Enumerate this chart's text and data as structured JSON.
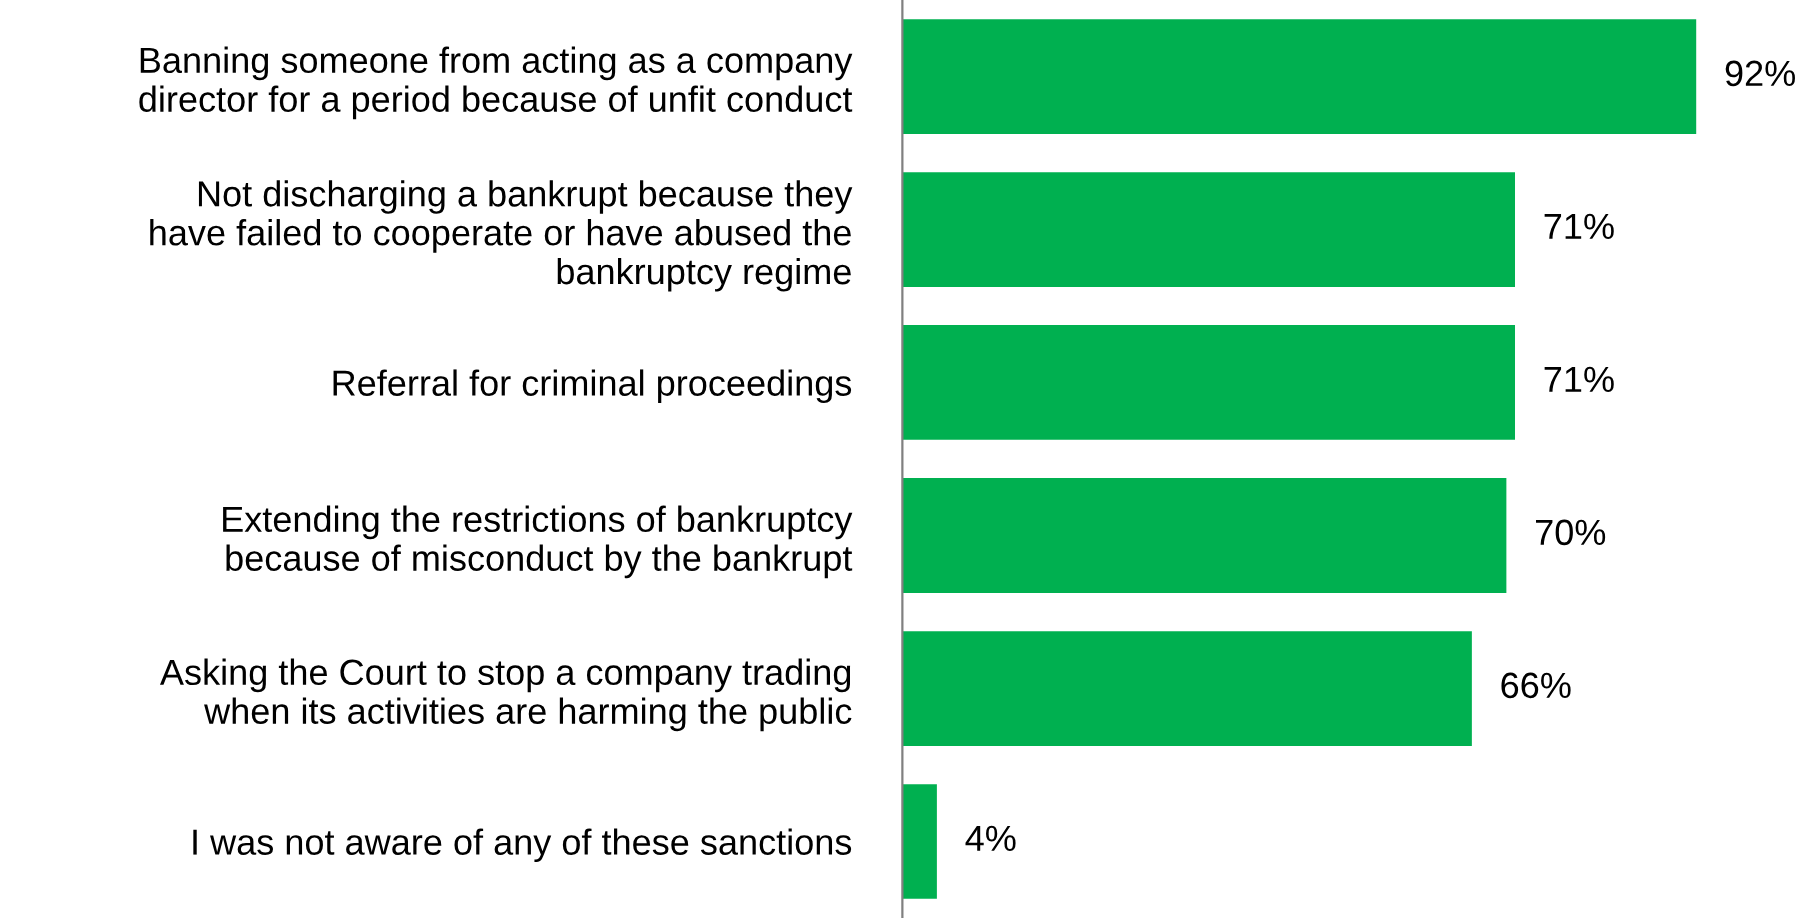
{
  "chart_data": {
    "type": "bar",
    "orientation": "horizontal",
    "categories": [
      "Banning someone from acting as a company\ndirector for a period because of unfit conduct",
      "Not discharging a bankrupt because they\nhave failed to cooperate or have abused the\nbankruptcy regime",
      "Referral for criminal proceedings",
      "Extending the restrictions of bankruptcy\nbecause of misconduct by the bankrupt",
      "Asking the Court to stop a company trading\nwhen its activities are harming the public",
      "I was not aware of any of these sanctions"
    ],
    "values": [
      92,
      71,
      71,
      70,
      66,
      4
    ],
    "value_labels": [
      "92%",
      "71%",
      "71%",
      "70%",
      "66%",
      "4%"
    ],
    "color": "#00b050",
    "grid": false,
    "legend": false
  }
}
